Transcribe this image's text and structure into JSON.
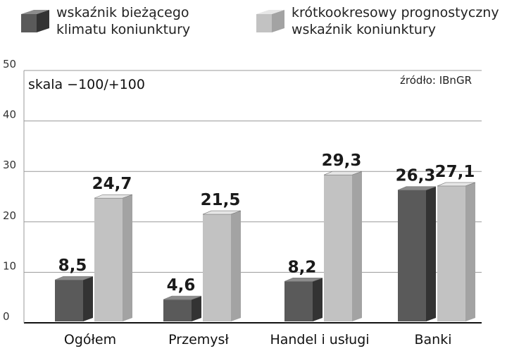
{
  "legend": {
    "current": {
      "line1": "wskaźnik bieżącego",
      "line2": "klimatu koniunktury"
    },
    "forecast": {
      "line1": "krótkookresowy prognostyczny",
      "line2": "wskaźnik koniunktury"
    }
  },
  "annotations": {
    "scale": "skala −100/+100",
    "source": "źródło: IBnGR"
  },
  "colors": {
    "current_front": "#5a5a5a",
    "current_side": "#333333",
    "current_top": "#8c8c8c",
    "forecast_front": "#c2c2c2",
    "forecast_side": "#a3a3a3",
    "forecast_top": "#e6e6e6",
    "grid": "#9a9a9a",
    "text": "#1a1a1a"
  },
  "chart_data": {
    "type": "bar",
    "categories": [
      "Ogółem",
      "Przemysł",
      "Handel i usługi",
      "Banki"
    ],
    "series": [
      {
        "name": "wskaźnik bieżącego klimatu koniunktury",
        "values": [
          8.5,
          4.6,
          8.2,
          26.3
        ],
        "labels": [
          "8,5",
          "4,6",
          "8,2",
          "26,3"
        ]
      },
      {
        "name": "krótkookresowy prognostyczny wskaźnik koniunktury",
        "values": [
          24.7,
          21.5,
          29.3,
          27.1
        ],
        "labels": [
          "24,7",
          "21,5",
          "29,3",
          "27,1"
        ]
      }
    ],
    "ylim": [
      0,
      50
    ],
    "yticks": [
      "0",
      "10",
      "20",
      "30",
      "40",
      "50"
    ],
    "grid": true
  }
}
